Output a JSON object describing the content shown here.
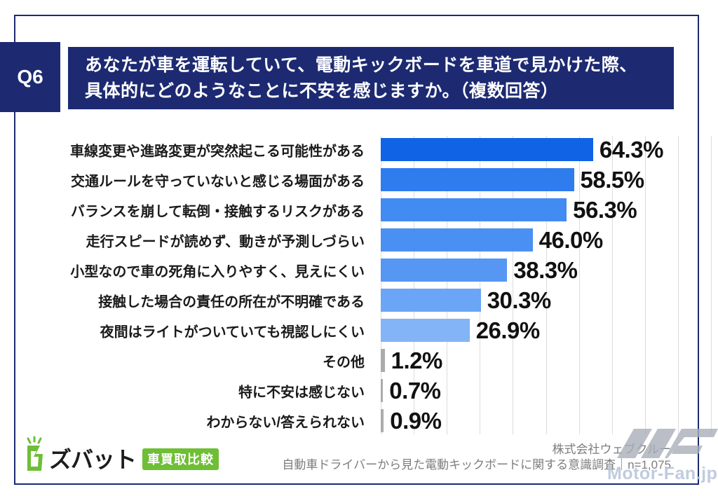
{
  "header": {
    "q_label": "Q6",
    "question_line1": "あなたが車を運転していて、電動キックボードを車道で見かけた際、",
    "question_line2": "具体的にどのようなことに不安を感じますか。（複数回答）"
  },
  "chart_data": {
    "type": "bar",
    "orientation": "horizontal",
    "title": "",
    "xlabel": "",
    "ylabel": "",
    "categories": [
      "車線変更や進路変更が突然起こる可能性がある",
      "交通ルールを守っていないと感じる場面がある",
      "バランスを崩して転倒・接触するリスクがある",
      "走行スピードが読めず、動きが予測しづらい",
      "小型なので車の死角に入りやすく、見えにくい",
      "接触した場合の責任の所在が不明確である",
      "夜間はライトがついていても視認しにくい",
      "その他",
      "特に不安は感じない",
      "わからない/答えられない"
    ],
    "values": [
      64.3,
      58.5,
      56.3,
      46.0,
      38.3,
      30.3,
      26.9,
      1.2,
      0.7,
      0.9
    ],
    "value_labels": [
      "64.3%",
      "58.5%",
      "56.3%",
      "46.0%",
      "38.3%",
      "30.3%",
      "26.9%",
      "1.2%",
      "0.7%",
      "0.9%"
    ],
    "bar_colors": [
      "#1063e5",
      "#2e7cee",
      "#418bf2",
      "#4a90f2",
      "#5597f3",
      "#6ba5f6",
      "#82b4f7",
      "#ababab",
      "#ababab",
      "#ababab"
    ],
    "xlim": [
      0,
      100
    ],
    "gridline_interval_pct": 10,
    "grid": true,
    "legend": false
  },
  "footer": {
    "logo_text": "ズバット",
    "logo_badge": "車買取比較",
    "company": "株式会社ウェブクルー",
    "survey_line": "自動車ドライバーから見た電動キックボードに関する意識調査｜n=1,075",
    "watermark": "Motor-Fan.jp"
  },
  "colors": {
    "navy": "#1d2a72",
    "grid": "#dcdcdc",
    "footer_text": "#7d7d7d",
    "logo_green": "#6ebe36",
    "watermark_gray": "#a9aeb8",
    "watermark_text": "#b7c3d9"
  }
}
